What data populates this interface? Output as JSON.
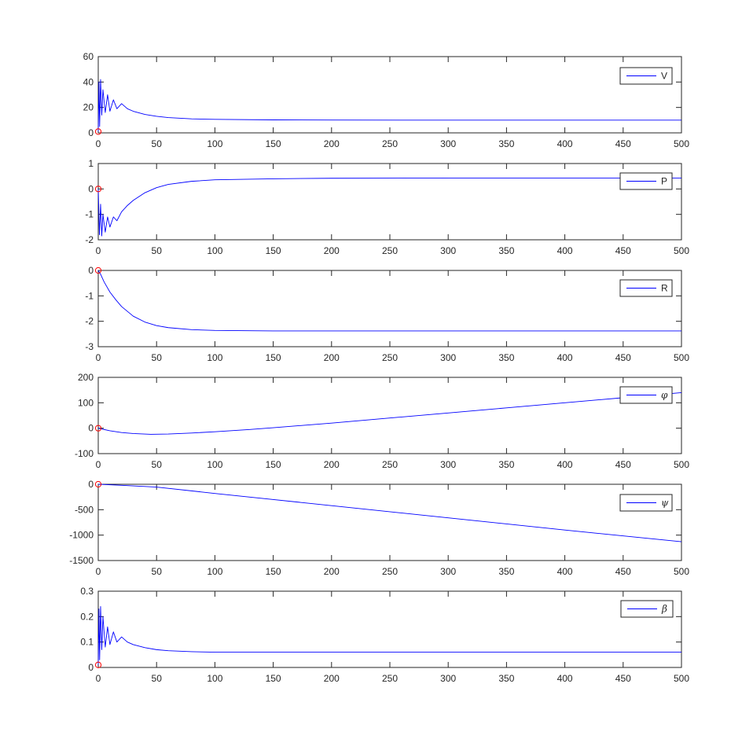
{
  "colors": {
    "line": "#0000ff",
    "marker": "#ff0000",
    "axes": "#262626",
    "background": "#ffffff"
  },
  "chart_data": [
    {
      "type": "line",
      "legend": "V",
      "legend_style": "plain",
      "legend_position": "top-right",
      "xlim": [
        0,
        500
      ],
      "ylim": [
        0,
        60
      ],
      "xticks": [
        0,
        50,
        100,
        150,
        200,
        250,
        300,
        350,
        400,
        450,
        500
      ],
      "yticks": [
        0,
        20,
        40,
        60
      ],
      "initial_marker": [
        0,
        1
      ],
      "series": [
        {
          "x": [
            0,
            0.6,
            1.2,
            2,
            3,
            4,
            6,
            8,
            10,
            13,
            16,
            20,
            25,
            30,
            40,
            50,
            60,
            80,
            100,
            150,
            200,
            300,
            400,
            500
          ],
          "y": [
            1,
            40,
            5,
            42,
            14,
            34,
            16,
            30,
            17,
            26,
            19,
            23,
            19,
            17,
            14.5,
            13,
            12,
            11,
            10.6,
            10.2,
            10.1,
            10,
            10,
            10
          ]
        }
      ]
    },
    {
      "type": "line",
      "legend": "P",
      "legend_style": "plain",
      "legend_position": "top-right",
      "xlim": [
        0,
        500
      ],
      "ylim": [
        -2,
        1
      ],
      "xticks": [
        0,
        50,
        100,
        150,
        200,
        250,
        300,
        350,
        400,
        450,
        500
      ],
      "yticks": [
        -2,
        -1,
        0,
        1
      ],
      "initial_marker": [
        0,
        0
      ],
      "series": [
        {
          "x": [
            0,
            1,
            2,
            3,
            4,
            6,
            8,
            10,
            13,
            16,
            20,
            25,
            30,
            40,
            50,
            60,
            80,
            100,
            150,
            200,
            300,
            400,
            500
          ],
          "y": [
            0,
            -1.8,
            -0.6,
            -1.85,
            -1.0,
            -1.7,
            -1.1,
            -1.5,
            -1.1,
            -1.25,
            -0.9,
            -0.65,
            -0.45,
            -0.15,
            0.05,
            0.18,
            0.3,
            0.36,
            0.4,
            0.42,
            0.43,
            0.43,
            0.43
          ]
        }
      ]
    },
    {
      "type": "line",
      "legend": "R",
      "legend_style": "plain",
      "legend_position": "top-right",
      "xlim": [
        0,
        500
      ],
      "ylim": [
        -3,
        0
      ],
      "xticks": [
        0,
        50,
        100,
        150,
        200,
        250,
        300,
        350,
        400,
        450,
        500
      ],
      "yticks": [
        -3,
        -2,
        -1,
        0
      ],
      "initial_marker": [
        0,
        0
      ],
      "series": [
        {
          "x": [
            0,
            2,
            5,
            10,
            15,
            20,
            30,
            40,
            50,
            60,
            80,
            100,
            150,
            200,
            300,
            400,
            500
          ],
          "y": [
            0,
            -0.15,
            -0.45,
            -0.85,
            -1.15,
            -1.42,
            -1.8,
            -2.03,
            -2.17,
            -2.25,
            -2.33,
            -2.36,
            -2.38,
            -2.38,
            -2.38,
            -2.38,
            -2.38
          ]
        }
      ]
    },
    {
      "type": "line",
      "legend": "φ",
      "legend_style": "math",
      "legend_position": "top-right",
      "xlim": [
        0,
        500
      ],
      "ylim": [
        -100,
        200
      ],
      "xticks": [
        0,
        50,
        100,
        150,
        200,
        250,
        300,
        350,
        400,
        450,
        500
      ],
      "yticks": [
        -100,
        0,
        100,
        200
      ],
      "initial_marker": [
        0,
        0
      ],
      "series": [
        {
          "x": [
            0,
            10,
            20,
            30,
            45,
            60,
            80,
            100,
            130,
            150,
            200,
            250,
            300,
            350,
            400,
            450,
            500
          ],
          "y": [
            0,
            -10,
            -17,
            -21,
            -24,
            -23,
            -19,
            -14,
            -5,
            2,
            20,
            40,
            60,
            80,
            100,
            120,
            140
          ]
        }
      ]
    },
    {
      "type": "line",
      "legend": "ψ",
      "legend_style": "math",
      "legend_position": "top-right",
      "xlim": [
        0,
        500
      ],
      "ylim": [
        -1500,
        0
      ],
      "xticks": [
        0,
        50,
        100,
        150,
        200,
        250,
        300,
        350,
        400,
        450,
        500
      ],
      "yticks": [
        -1500,
        -1000,
        -500,
        0
      ],
      "initial_marker": [
        0,
        0
      ],
      "series": [
        {
          "x": [
            0,
            20,
            50,
            100,
            200,
            300,
            400,
            500
          ],
          "y": [
            0,
            -20,
            -55,
            -180,
            -420,
            -660,
            -900,
            -1130
          ]
        }
      ]
    },
    {
      "type": "line",
      "legend": "β",
      "legend_style": "math",
      "legend_position": "top-right",
      "xlim": [
        0,
        500
      ],
      "ylim": [
        0,
        0.3
      ],
      "xticks": [
        0,
        50,
        100,
        150,
        200,
        250,
        300,
        350,
        400,
        450,
        500
      ],
      "yticks": [
        0,
        0.1,
        0.2,
        0.3
      ],
      "initial_marker": [
        0,
        0.01
      ],
      "series": [
        {
          "x": [
            0,
            0.6,
            1.2,
            2,
            3,
            4,
            6,
            8,
            10,
            13,
            16,
            20,
            25,
            30,
            40,
            50,
            60,
            80,
            100,
            150,
            200,
            300,
            400,
            500
          ],
          "y": [
            0.01,
            0.23,
            0.03,
            0.24,
            0.07,
            0.2,
            0.08,
            0.16,
            0.09,
            0.14,
            0.1,
            0.12,
            0.1,
            0.09,
            0.078,
            0.07,
            0.066,
            0.062,
            0.06,
            0.06,
            0.06,
            0.06,
            0.06,
            0.06
          ]
        }
      ]
    }
  ]
}
